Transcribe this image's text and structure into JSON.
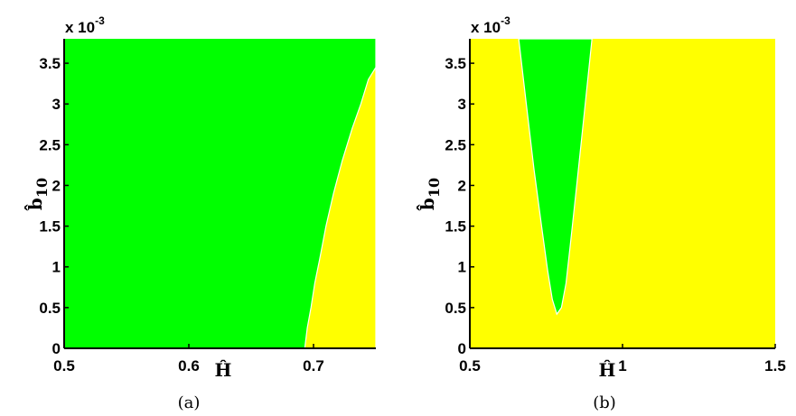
{
  "colors": {
    "green": "#00ff00",
    "yellow": "#ffff00",
    "axis": "#000000"
  },
  "chart_data": [
    {
      "type": "heatmap",
      "caption": "(a)",
      "xlabel": "Ĥ",
      "ylabel": "b̂",
      "ylabel_sub": "10",
      "y_exponent": "x 10",
      "y_exponent_power": "-3",
      "xlim": [
        0.5,
        0.75
      ],
      "ylim": [
        0,
        3.8
      ],
      "xticks": [
        0.5,
        0.6,
        0.7
      ],
      "xtick_labels": [
        "0.5",
        "0.6",
        "0.7"
      ],
      "yticks": [
        0,
        0.5,
        1,
        1.5,
        2,
        2.5,
        3,
        3.5
      ],
      "ytick_labels": [
        "0",
        "0.5",
        "1",
        "1.5",
        "2",
        "2.5",
        "3",
        "3.5"
      ],
      "background_region": "green",
      "region": {
        "color": "yellow",
        "side": "right",
        "boundary": [
          {
            "x": 0.693,
            "y": 0.0
          },
          {
            "x": 0.695,
            "y": 0.25
          },
          {
            "x": 0.698,
            "y": 0.5
          },
          {
            "x": 0.701,
            "y": 0.8
          },
          {
            "x": 0.705,
            "y": 1.1
          },
          {
            "x": 0.71,
            "y": 1.5
          },
          {
            "x": 0.716,
            "y": 1.9
          },
          {
            "x": 0.723,
            "y": 2.3
          },
          {
            "x": 0.731,
            "y": 2.7
          },
          {
            "x": 0.738,
            "y": 3.0
          },
          {
            "x": 0.744,
            "y": 3.3
          },
          {
            "x": 0.75,
            "y": 3.45
          }
        ]
      }
    },
    {
      "type": "heatmap",
      "caption": "(b)",
      "xlabel": "Ĥ",
      "ylabel": "b̂",
      "ylabel_sub": "10",
      "y_exponent": "x 10",
      "y_exponent_power": "-3",
      "xlim": [
        0.5,
        1.5
      ],
      "ylim": [
        0,
        3.8
      ],
      "xticks": [
        0.5,
        1,
        1.5
      ],
      "xtick_labels": [
        "0.5",
        "1",
        "1.5"
      ],
      "yticks": [
        0,
        0.5,
        1,
        1.5,
        2,
        2.5,
        3,
        3.5
      ],
      "ytick_labels": [
        "0",
        "0.5",
        "1",
        "1.5",
        "2",
        "2.5",
        "3",
        "3.5"
      ],
      "background_region": "yellow",
      "region": {
        "color": "green",
        "side": "enclosed",
        "boundary": [
          {
            "x": 0.66,
            "y": 3.8
          },
          {
            "x": 0.685,
            "y": 3.0
          },
          {
            "x": 0.71,
            "y": 2.2
          },
          {
            "x": 0.735,
            "y": 1.5
          },
          {
            "x": 0.755,
            "y": 0.95
          },
          {
            "x": 0.77,
            "y": 0.6
          },
          {
            "x": 0.785,
            "y": 0.42
          },
          {
            "x": 0.8,
            "y": 0.5
          },
          {
            "x": 0.815,
            "y": 0.8
          },
          {
            "x": 0.83,
            "y": 1.3
          },
          {
            "x": 0.85,
            "y": 2.0
          },
          {
            "x": 0.875,
            "y": 2.9
          },
          {
            "x": 0.9,
            "y": 3.8
          }
        ]
      }
    }
  ]
}
